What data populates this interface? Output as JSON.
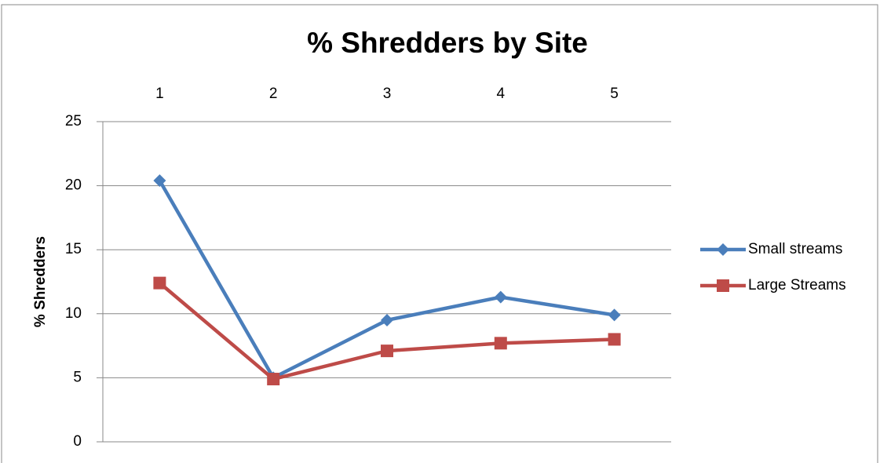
{
  "chart_data": {
    "type": "line",
    "title": "% Shredders by Site",
    "y_label": "% Shredders",
    "categories": [
      "1",
      "2",
      "3",
      "4",
      "5"
    ],
    "series": [
      {
        "name": "Small streams",
        "color": "#4a7ebb",
        "marker": "diamond",
        "values": [
          20.4,
          5.0,
          9.5,
          11.3,
          9.9
        ]
      },
      {
        "name": "Large Streams",
        "color": "#be4b48",
        "marker": "square",
        "values": [
          12.4,
          4.9,
          7.1,
          7.7,
          8.0
        ]
      }
    ],
    "ylim": [
      0,
      25
    ],
    "yticks": [
      0,
      5,
      10,
      15,
      20,
      25
    ],
    "grid": true,
    "legend": "right",
    "x_axis_position": "top"
  }
}
